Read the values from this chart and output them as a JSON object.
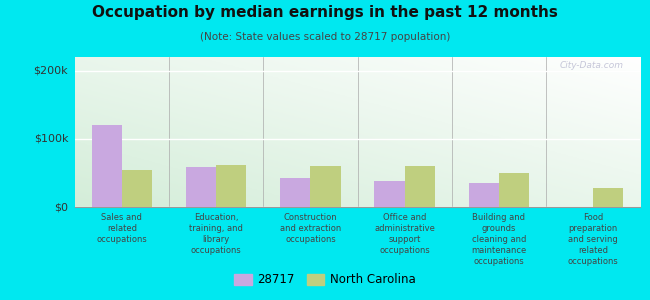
{
  "title": "Occupation by median earnings in the past 12 months",
  "subtitle": "(Note: State values scaled to 28717 population)",
  "categories": [
    "Sales and\nrelated\noccupations",
    "Education,\ntraining, and\nlibrary\noccupations",
    "Construction\nand extraction\noccupations",
    "Office and\nadministrative\nsupport\noccupations",
    "Building and\ngrounds\ncleaning and\nmaintenance\noccupations",
    "Food\npreparation\nand serving\nrelated\noccupations"
  ],
  "values_28717": [
    120000,
    58000,
    43000,
    38000,
    35000,
    0
  ],
  "values_nc": [
    55000,
    62000,
    60000,
    60000,
    50000,
    28000
  ],
  "color_28717": "#c9a8e0",
  "color_nc": "#bfcf7f",
  "ylim": [
    0,
    220000
  ],
  "yticks": [
    0,
    100000,
    200000
  ],
  "ytick_labels": [
    "$0",
    "$100k",
    "$200k"
  ],
  "outer_bg": "#00e8f0",
  "legend_label_28717": "28717",
  "legend_label_nc": "North Carolina",
  "watermark": "City-Data.com",
  "bar_width": 0.32
}
